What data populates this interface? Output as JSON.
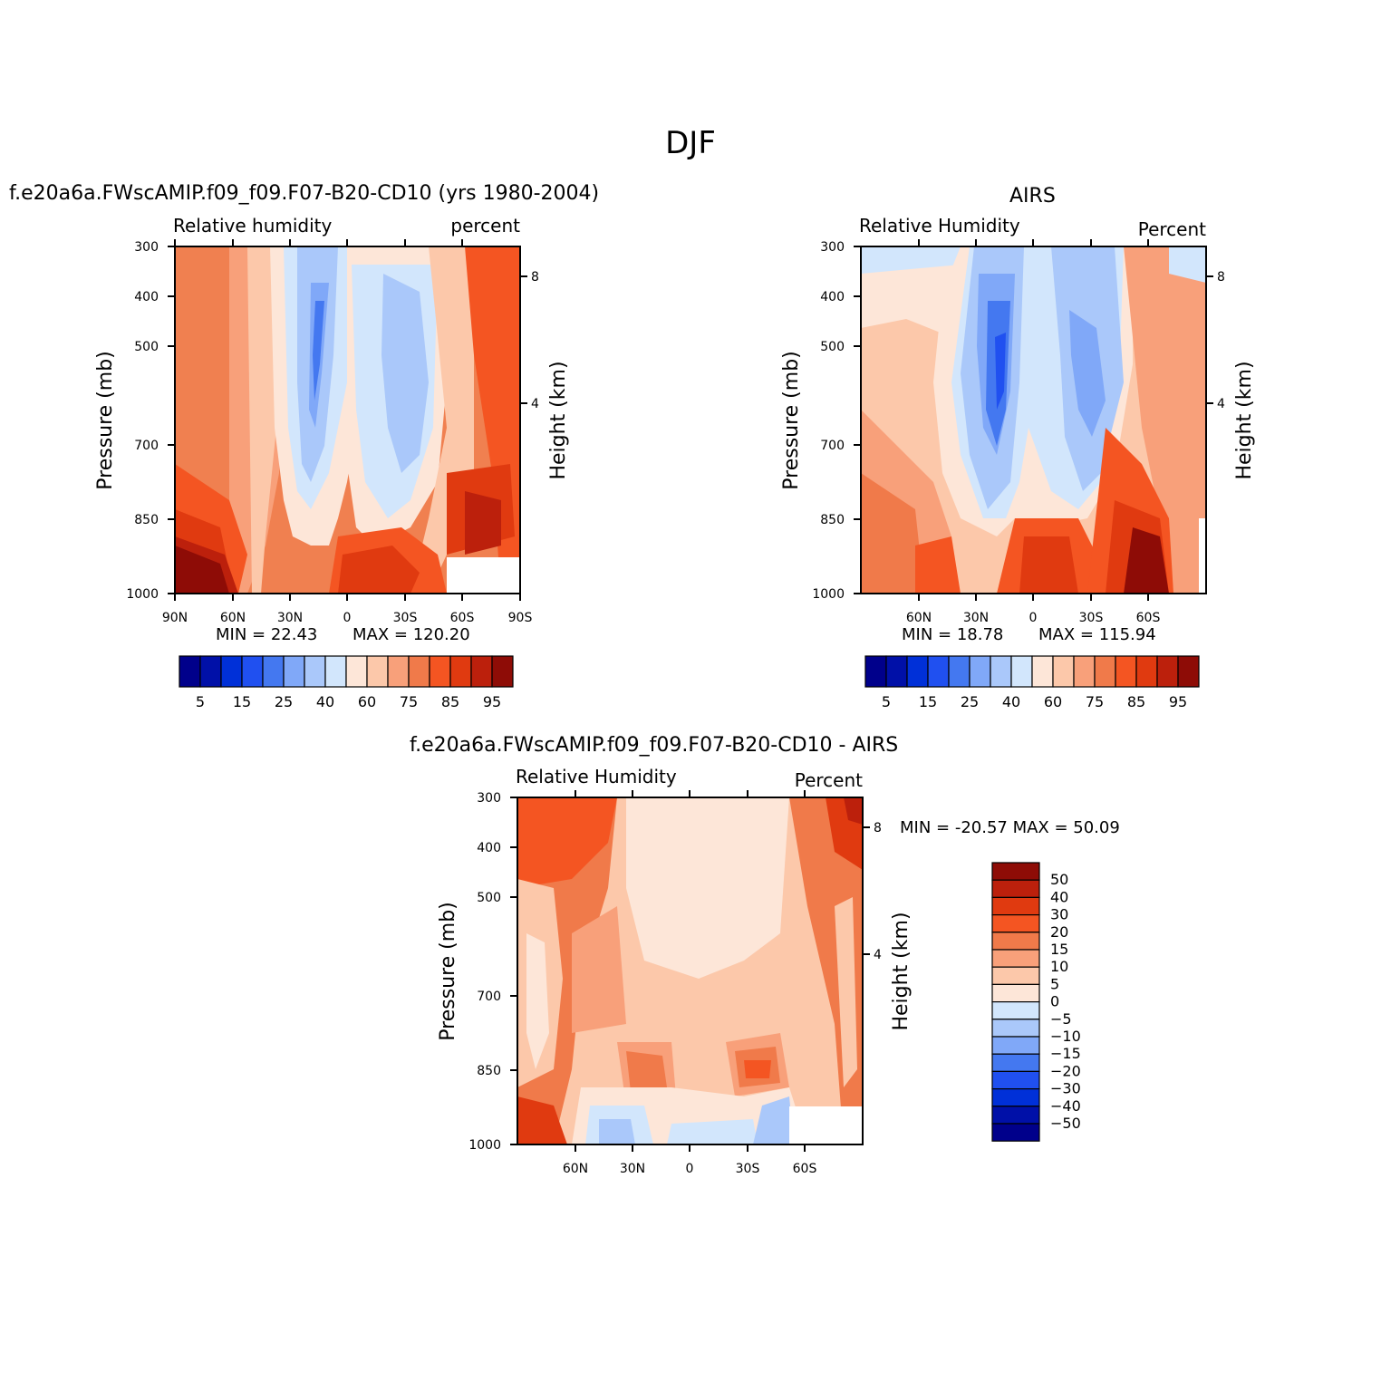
{
  "main_title": "DJF",
  "palette": {
    "blues": [
      "#00008b",
      "#0010a8",
      "#0030d8",
      "#2050f0",
      "#4478f0",
      "#80a8f8",
      "#aac8fa",
      "#d2e6fc"
    ],
    "reds": [
      "#fde6d8",
      "#fcc8aa",
      "#f8a07a",
      "#f07a4a",
      "#f45522",
      "#e03a10",
      "#bc200c",
      "#8e0c06"
    ],
    "diff_scale": [
      "#00008b",
      "#0010a8",
      "#0030d8",
      "#2050f0",
      "#4478f0",
      "#80a8f8",
      "#aac8fa",
      "#d2e6fc",
      "#fde6d8",
      "#fcc8aa",
      "#f8a07a",
      "#f07a4a",
      "#f45522",
      "#e03a10",
      "#bc200c",
      "#8e0c06"
    ]
  },
  "chart_data": [
    {
      "type": "heatmap",
      "id": "model",
      "title": "f.e20a6a.FWscAMIP.f09_f09.F07-B20-CD10 (yrs 1980-2004)",
      "left_label": "Relative humidity",
      "right_label": "percent",
      "ylabel": "Pressure (mb)",
      "ylabel2": "Height (km)",
      "yticks": [
        "300",
        "400",
        "500",
        "700",
        "850",
        "1000"
      ],
      "yticks2": [
        "8",
        "4"
      ],
      "xticks": [
        "90N",
        "60N",
        "30N",
        "0",
        "30S",
        "60S",
        "90S"
      ],
      "min_text": "MIN =   22.43",
      "max_text": "MAX = 120.20",
      "colorbar_labels": [
        "5",
        "15",
        "25",
        "40",
        "60",
        "75",
        "85",
        "95"
      ]
    },
    {
      "type": "heatmap",
      "id": "obs",
      "title": "AIRS",
      "left_label": "Relative Humidity",
      "right_label": "Percent",
      "ylabel": "Pressure (mb)",
      "ylabel2": "Height (km)",
      "yticks": [
        "300",
        "400",
        "500",
        "700",
        "850",
        "1000"
      ],
      "yticks2": [
        "8",
        "4"
      ],
      "xticks": [
        "60N",
        "30N",
        "0",
        "30S",
        "60S"
      ],
      "min_text": "MIN =   18.78",
      "max_text": "MAX = 115.94",
      "colorbar_labels": [
        "5",
        "15",
        "25",
        "40",
        "60",
        "75",
        "85",
        "95"
      ]
    },
    {
      "type": "heatmap",
      "id": "diff",
      "title": "f.e20a6a.FWscAMIP.f09_f09.F07-B20-CD10 - AIRS",
      "left_label": "Relative Humidity",
      "right_label": "Percent",
      "ylabel": "Pressure (mb)",
      "ylabel2": "Height (km)",
      "yticks": [
        "300",
        "400",
        "500",
        "700",
        "850",
        "1000"
      ],
      "yticks2": [
        "8",
        "4"
      ],
      "xticks": [
        "60N",
        "30N",
        "0",
        "30S",
        "60S"
      ],
      "minmax_text": "MIN = -20.57   MAX =   50.09",
      "colorbar_labels": [
        "50",
        "40",
        "30",
        "20",
        "15",
        "10",
        "5",
        "0",
        "-5",
        "-10",
        "-15",
        "-20",
        "-30",
        "-40",
        "-50"
      ]
    }
  ]
}
